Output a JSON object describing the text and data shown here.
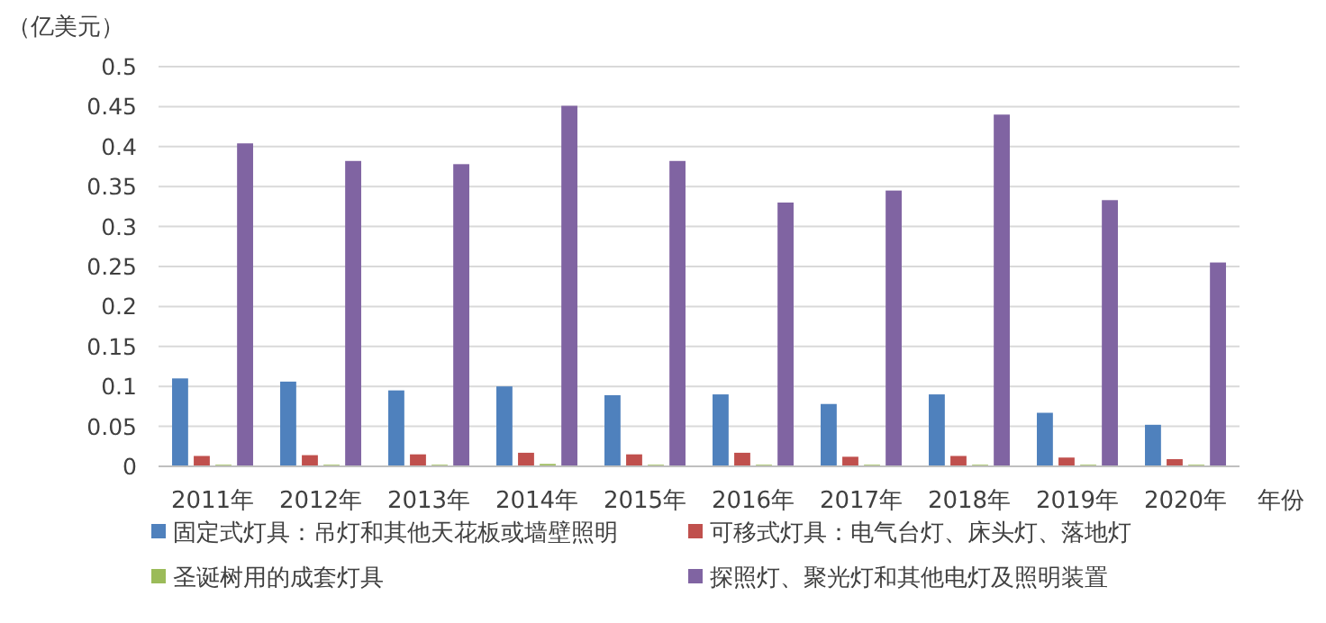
{
  "chart_data": {
    "type": "bar",
    "ylabel": "（亿美元）",
    "xlabel": "年份",
    "categories": [
      "2011年",
      "2012年",
      "2013年",
      "2014年",
      "2015年",
      "2016年",
      "2017年",
      "2018年",
      "2019年",
      "2020年"
    ],
    "series": [
      {
        "name": "固定式灯具：吊灯和其他天花板或墙壁照明",
        "color": "#4f81bd",
        "values": [
          0.11,
          0.106,
          0.095,
          0.1,
          0.089,
          0.09,
          0.078,
          0.09,
          0.067,
          0.052
        ]
      },
      {
        "name": "可移式灯具：电气台灯、床头灯、落地灯",
        "color": "#c0504d",
        "values": [
          0.013,
          0.014,
          0.015,
          0.017,
          0.015,
          0.017,
          0.012,
          0.013,
          0.011,
          0.009
        ]
      },
      {
        "name": "圣诞树用的成套灯具",
        "color": "#9bbb59",
        "values": [
          0.002,
          0.002,
          0.002,
          0.003,
          0.002,
          0.002,
          0.002,
          0.002,
          0.002,
          0.002
        ]
      },
      {
        "name": "探照灯、聚光灯和其他电灯及照明装置",
        "color": "#8064a2",
        "values": [
          0.404,
          0.382,
          0.378,
          0.451,
          0.382,
          0.33,
          0.345,
          0.44,
          0.333,
          0.255
        ]
      }
    ],
    "ylim": [
      0,
      0.5
    ],
    "yticks": [
      0,
      0.05,
      0.1,
      0.15,
      0.2,
      0.25,
      0.3,
      0.35,
      0.4,
      0.45,
      0.5
    ],
    "grid": "y",
    "legend": "bottom"
  }
}
